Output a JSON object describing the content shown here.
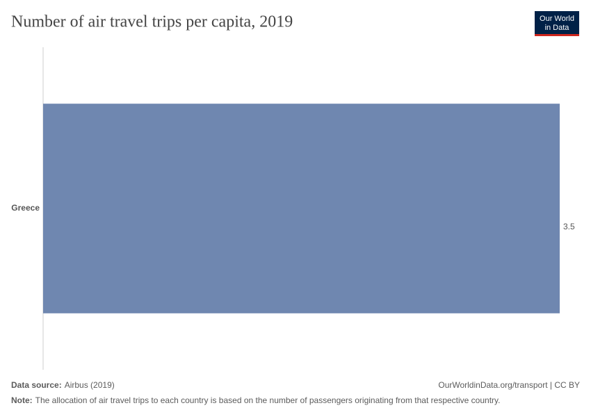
{
  "chart_data": {
    "type": "bar",
    "orientation": "horizontal",
    "title": "Number of air travel trips per capita, 2019",
    "categories": [
      "Greece"
    ],
    "values": [
      3.5
    ],
    "color": "#6f87b0"
  },
  "logo": {
    "line1": "Our World",
    "line2": "in Data"
  },
  "footer": {
    "source_label": "Data source:",
    "source": "Airbus (2019)",
    "url": "OurWorldinData.org/transport | CC BY",
    "note_label": "Note:",
    "note": "The allocation of air travel trips to each country is based on the number of passengers originating from that respective country."
  }
}
